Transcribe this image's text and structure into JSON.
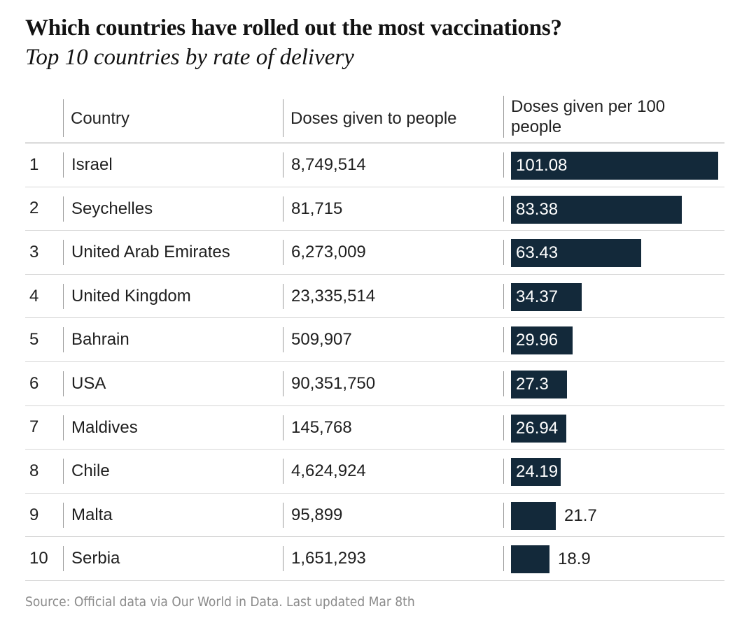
{
  "chart_data": {
    "type": "table",
    "title": "Which countries have rolled out the most vaccinations?",
    "subtitle": "Top 10 countries by rate of delivery",
    "columns": [
      "",
      "Country",
      "Doses given to people",
      "Doses given per 100 people"
    ],
    "header": {
      "country": "Country",
      "doses": "Doses given to people",
      "per100": "Doses given per 100 people"
    },
    "rows": [
      {
        "rank": "1",
        "country": "Israel",
        "doses": "8,749,514",
        "per100": 101.08,
        "per100_label": "101.08"
      },
      {
        "rank": "2",
        "country": "Seychelles",
        "doses": "81,715",
        "per100": 83.38,
        "per100_label": "83.38"
      },
      {
        "rank": "3",
        "country": "United Arab Emirates",
        "doses": "6,273,009",
        "per100": 63.43,
        "per100_label": "63.43"
      },
      {
        "rank": "4",
        "country": "United Kingdom",
        "doses": "23,335,514",
        "per100": 34.37,
        "per100_label": "34.37"
      },
      {
        "rank": "5",
        "country": "Bahrain",
        "doses": "509,907",
        "per100": 29.96,
        "per100_label": "29.96"
      },
      {
        "rank": "6",
        "country": "USA",
        "doses": "90,351,750",
        "per100": 27.3,
        "per100_label": "27.3"
      },
      {
        "rank": "7",
        "country": "Maldives",
        "doses": "145,768",
        "per100": 26.94,
        "per100_label": "26.94"
      },
      {
        "rank": "8",
        "country": "Chile",
        "doses": "4,624,924",
        "per100": 24.19,
        "per100_label": "24.19"
      },
      {
        "rank": "9",
        "country": "Malta",
        "doses": "95,899",
        "per100": 21.7,
        "per100_label": "21.7"
      },
      {
        "rank": "10",
        "country": "Serbia",
        "doses": "1,651,293",
        "per100": 18.9,
        "per100_label": "18.9"
      }
    ],
    "bar_max": 101.08,
    "bar_color": "#13293a",
    "source": "Source: Official data via Our World in Data. Last updated Mar 8th"
  }
}
